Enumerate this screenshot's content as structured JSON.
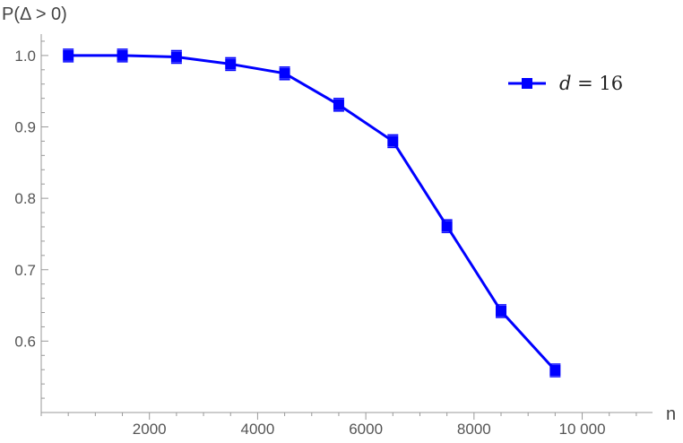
{
  "chart_data": {
    "type": "line",
    "ylabel": "P(Δ > 0)",
    "xlabel": "n",
    "xlim": [
      0,
      11300
    ],
    "ylim": [
      0.5,
      1.03
    ],
    "x_ticks": [
      2000,
      4000,
      6000,
      8000,
      10000
    ],
    "x_tick_labels": [
      "2000",
      "4000",
      "6000",
      "8000",
      "10 000"
    ],
    "y_ticks": [
      0.6,
      0.7,
      0.8,
      0.9,
      1.0
    ],
    "y_tick_labels": [
      "0.6",
      "0.7",
      "0.8",
      "0.9",
      "1.0"
    ],
    "grid": false,
    "legend_position": "top-right",
    "series": [
      {
        "name": "d = 16",
        "name_parts": {
          "var": "d",
          "rest": " = 16"
        },
        "color": "#0000ff",
        "marker": "square",
        "x": [
          500,
          1500,
          2500,
          3500,
          4500,
          5500,
          6500,
          7500,
          8500,
          9500
        ],
        "y": [
          1.0,
          1.0,
          0.998,
          0.988,
          0.975,
          0.931,
          0.88,
          0.761,
          0.642,
          0.559
        ]
      }
    ]
  }
}
